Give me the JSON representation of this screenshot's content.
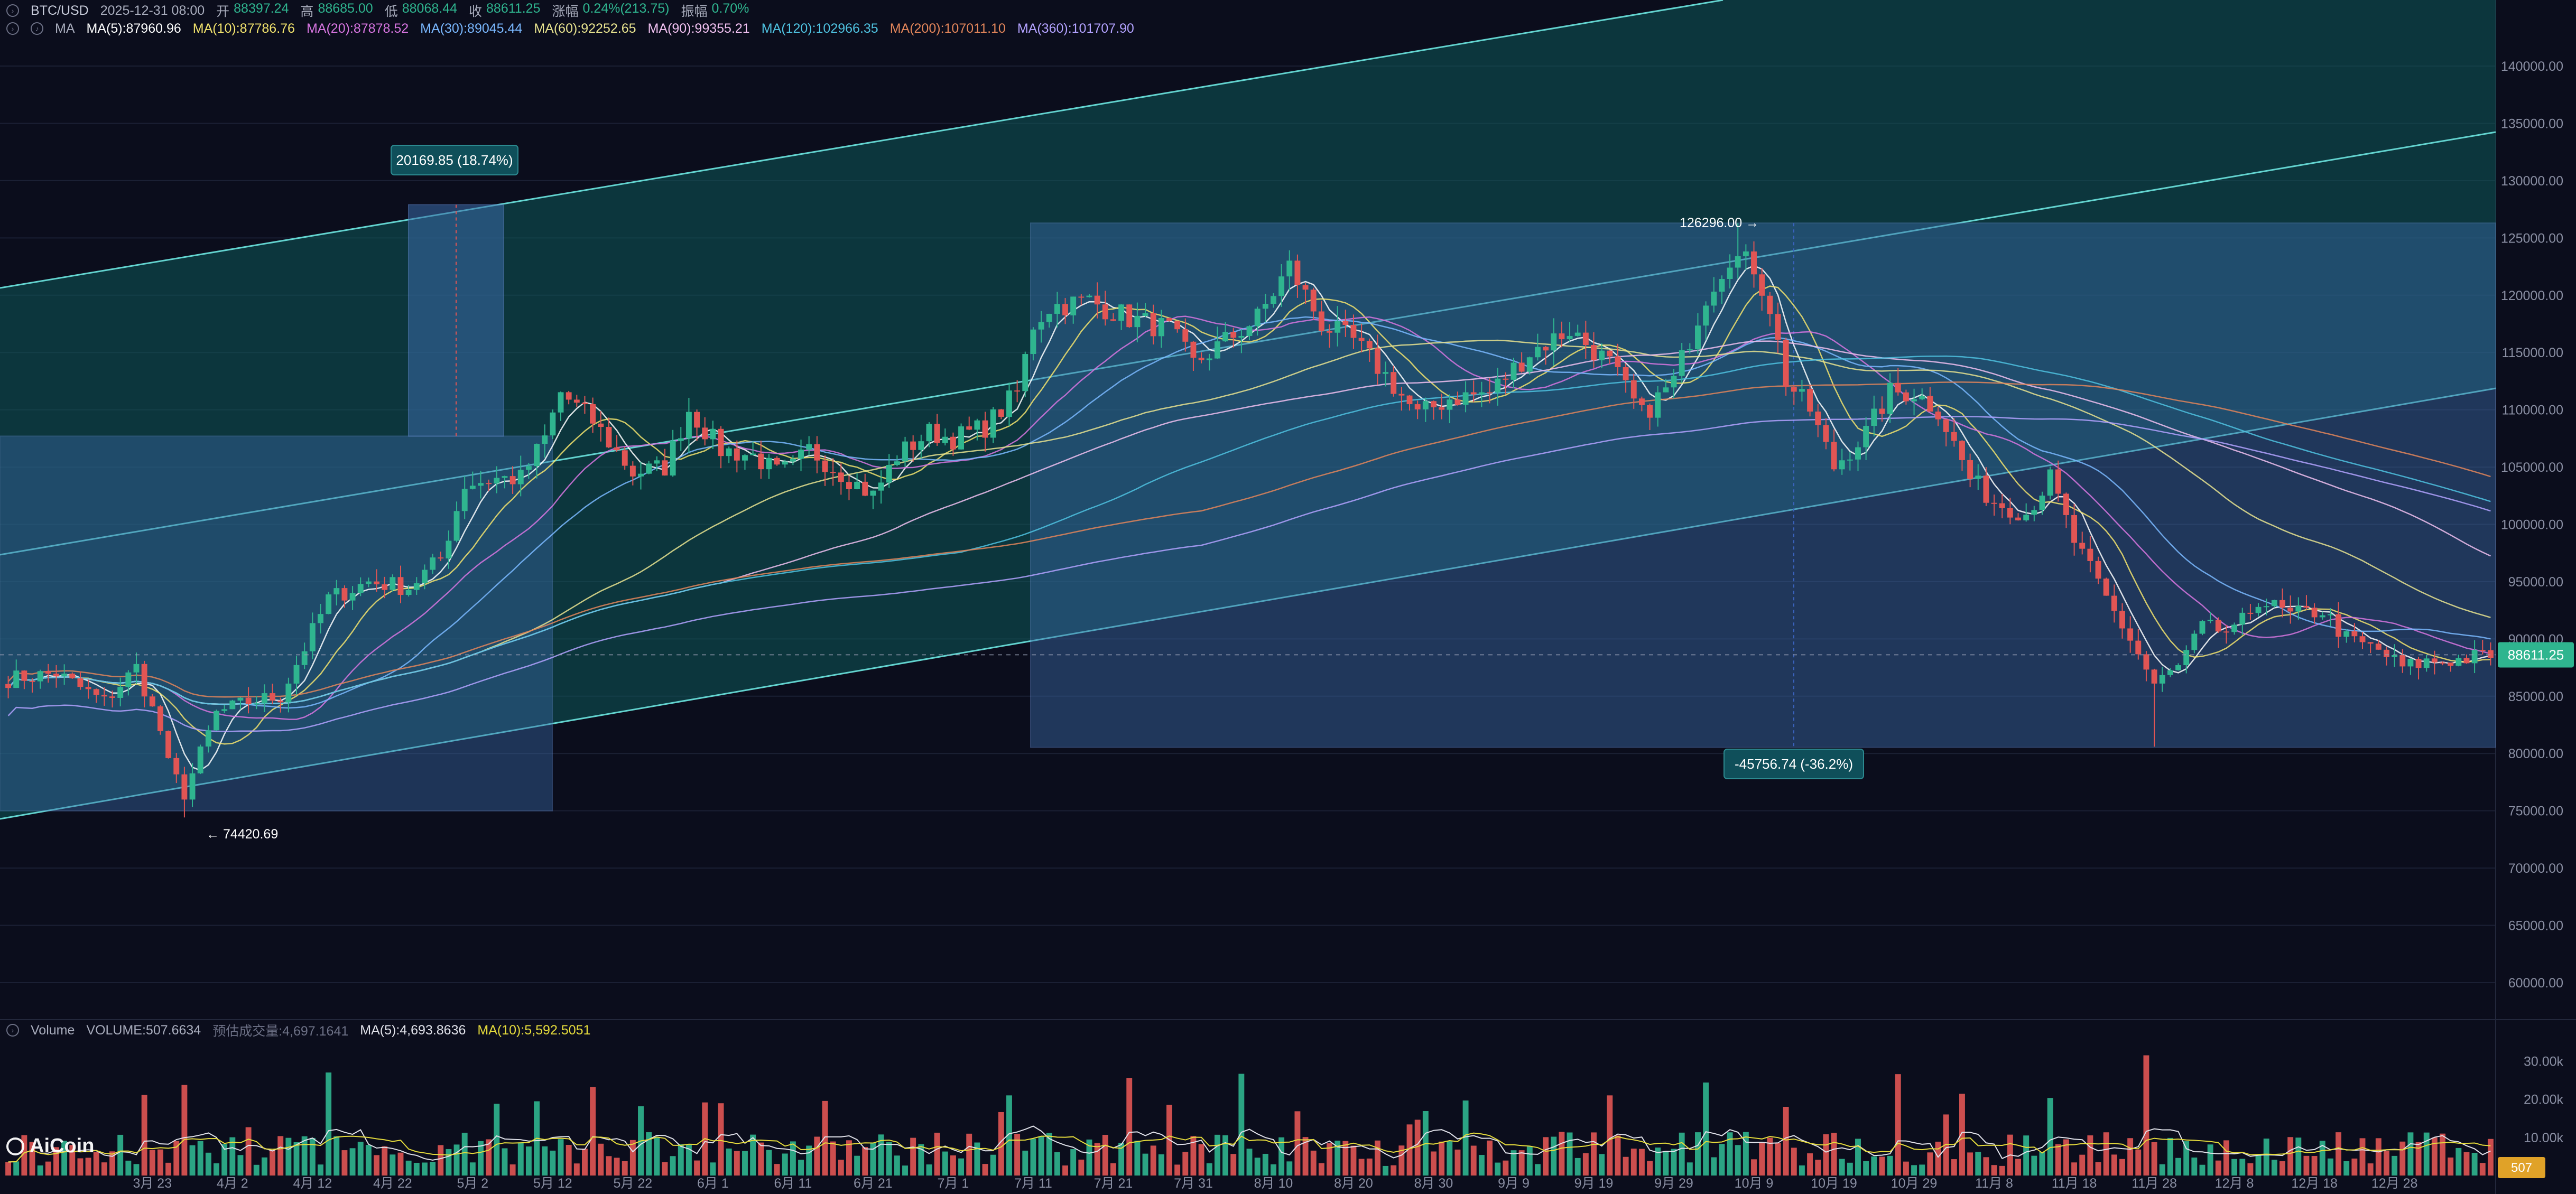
{
  "legend": {
    "symbol": "BTC/USD",
    "datetime": "2025-12-31 08:00",
    "open_label": "开",
    "open": "88397.24",
    "high_label": "高",
    "high": "88685.00",
    "low_label": "低",
    "low": "88068.44",
    "close_label": "收",
    "close": "88611.25",
    "change_label": "涨幅",
    "change": "0.24%(213.75)",
    "amp_label": "振幅",
    "amp": "0.70%"
  },
  "ma_legend": {
    "title": "MA",
    "items": [
      {
        "label": "MA(5):87960.96",
        "color": "#ffffff"
      },
      {
        "label": "MA(10):87786.76",
        "color": "#f2e36d"
      },
      {
        "label": "MA(20):87878.52",
        "color": "#d775e0"
      },
      {
        "label": "MA(30):89045.44",
        "color": "#7ab8ff"
      },
      {
        "label": "MA(60):92252.65",
        "color": "#e8e38f"
      },
      {
        "label": "MA(90):99355.21",
        "color": "#f0c0f0"
      },
      {
        "label": "MA(120):102966.35",
        "color": "#4fc2e0"
      },
      {
        "label": "MA(200):107011.10",
        "color": "#e2855a"
      },
      {
        "label": "MA(360):101707.90",
        "color": "#b3a2ff"
      }
    ]
  },
  "volume_legend": {
    "title": "Volume",
    "volume": "VOLUME:507.6634",
    "forecast": "预估成交量:4,697.1641",
    "ma5": "MA(5):4,693.8636",
    "ma10": "MA(10):5,592.5051",
    "ma5_color": "#e1e2ea",
    "ma10_color": "#e6dc3c"
  },
  "logo": "AiCoin",
  "colors": {
    "background": "#0b0d1c",
    "up": "#2fb58f",
    "down": "#e15554",
    "grid": "#1b2034",
    "channel_fill": "#0e5a5a",
    "box_fill": "#3a6aa8",
    "price_tag": "#2fb58f"
  },
  "chart_data": {
    "type": "candlestick",
    "symbol": "BTC/USD",
    "price_axis": {
      "ticks": [
        "140000.00",
        "135000.00",
        "130000.00",
        "125000.00",
        "120000.00",
        "115000.00",
        "110000.00",
        "105000.00",
        "100000.00",
        "95000.00",
        "90000.00",
        "85000.00",
        "80000.00",
        "75000.00",
        "70000.00",
        "65000.00",
        "60000.00"
      ],
      "range": [
        57000,
        143000
      ]
    },
    "volume_axis": {
      "ticks": [
        "30.00k",
        "20.00k",
        "10.00k"
      ],
      "range": [
        0,
        36000
      ]
    },
    "x_axis": {
      "ticks": [
        "3月 23",
        "4月 2",
        "4月 12",
        "4月 22",
        "5月 2",
        "5月 12",
        "5月 22",
        "6月 1",
        "6月 11",
        "6月 21",
        "7月 1",
        "7月 11",
        "7月 21",
        "7月 31",
        "8月 10",
        "8月 20",
        "8月 30",
        "9月 9",
        "9月 19",
        "9月 29",
        "10月 9",
        "10月 19",
        "10月 29",
        "11月 8",
        "11月 18",
        "11月 28",
        "12月 8",
        "12月 18",
        "12月 28"
      ],
      "days_visible": 290
    },
    "current_price": "88611.25",
    "current_volume": "507",
    "annotations": [
      {
        "text": "20169.85 (18.74%)",
        "type": "measure-up"
      },
      {
        "text": "-45756.74 (-36.2%)",
        "type": "measure-down"
      },
      {
        "text": "126296.00 →",
        "type": "high-label",
        "price": 126296
      },
      {
        "text": "← 74420.69",
        "type": "low-label",
        "price": 74420.69
      }
    ],
    "close_waypoints": [
      [
        0,
        86500
      ],
      [
        6,
        87000
      ],
      [
        12,
        84500
      ],
      [
        16,
        87500
      ],
      [
        19,
        82000
      ],
      [
        20,
        79000
      ],
      [
        22,
        76500
      ],
      [
        26,
        83500
      ],
      [
        30,
        84500
      ],
      [
        34,
        85000
      ],
      [
        40,
        93500
      ],
      [
        45,
        95000
      ],
      [
        50,
        94500
      ],
      [
        54,
        97000
      ],
      [
        57,
        103500
      ],
      [
        61,
        104000
      ],
      [
        64,
        104000
      ],
      [
        67,
        107500
      ],
      [
        69,
        111500
      ],
      [
        73,
        109000
      ],
      [
        78,
        104500
      ],
      [
        82,
        105000
      ],
      [
        85,
        110000
      ],
      [
        89,
        106500
      ],
      [
        93,
        106000
      ],
      [
        96,
        104500
      ],
      [
        98,
        105000
      ],
      [
        100,
        106500
      ],
      [
        105,
        104000
      ],
      [
        108,
        102500
      ],
      [
        111,
        106000
      ],
      [
        115,
        108000
      ],
      [
        118,
        107500
      ],
      [
        122,
        108500
      ],
      [
        126,
        111500
      ],
      [
        128,
        117500
      ],
      [
        130,
        119000
      ],
      [
        135,
        119500
      ],
      [
        140,
        118000
      ],
      [
        145,
        117000
      ],
      [
        148,
        114000
      ],
      [
        152,
        116000
      ],
      [
        156,
        118000
      ],
      [
        160,
        122500
      ],
      [
        164,
        117500
      ],
      [
        168,
        116000
      ],
      [
        172,
        113000
      ],
      [
        176,
        109500
      ],
      [
        180,
        111000
      ],
      [
        185,
        111500
      ],
      [
        190,
        115000
      ],
      [
        195,
        117000
      ],
      [
        200,
        114000
      ],
      [
        204,
        109500
      ],
      [
        208,
        112500
      ],
      [
        212,
        120000
      ],
      [
        215,
        123500
      ],
      [
        218,
        122500
      ],
      [
        220,
        119000
      ],
      [
        222,
        112500
      ],
      [
        225,
        110000
      ],
      [
        228,
        105000
      ],
      [
        232,
        108000
      ],
      [
        235,
        111500
      ],
      [
        238,
        111500
      ],
      [
        241,
        110000
      ],
      [
        245,
        104000
      ],
      [
        248,
        102000
      ],
      [
        252,
        101000
      ],
      [
        255,
        104000
      ],
      [
        258,
        98500
      ],
      [
        262,
        93500
      ],
      [
        265,
        90000
      ],
      [
        268,
        86000
      ],
      [
        271,
        87500
      ],
      [
        274,
        91000
      ],
      [
        278,
        90500
      ],
      [
        281,
        93500
      ],
      [
        285,
        92000
      ],
      [
        289,
        92500
      ],
      [
        292,
        90000
      ],
      [
        296,
        89000
      ],
      [
        299,
        87500
      ],
      [
        302,
        88000
      ],
      [
        306,
        88200
      ],
      [
        310,
        88611
      ]
    ]
  }
}
